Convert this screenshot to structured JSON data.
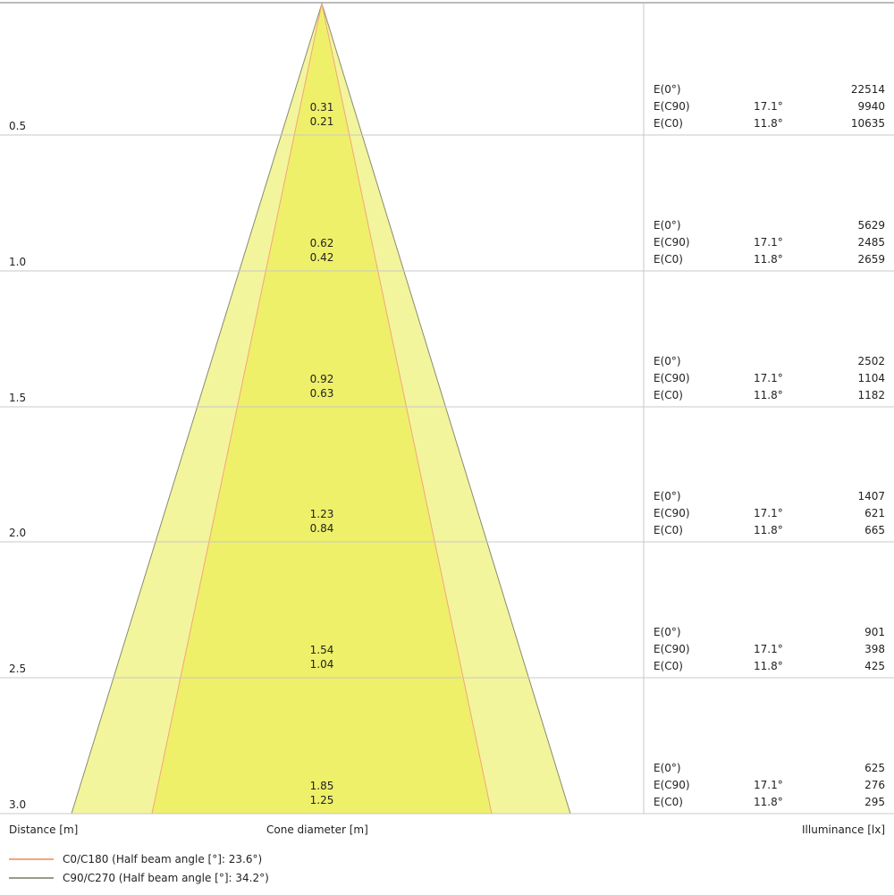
{
  "colors": {
    "outer_cone": "#f3f59c",
    "inner_cone": "#eef06a",
    "c0_line": "#f4a57a",
    "c90_line": "#9a9a8a",
    "grid": "#c8c8c8"
  },
  "rows": [
    {
      "distance": "0.5",
      "c90_diameter": "0.31",
      "c0_diameter": "0.21",
      "e0_label": "E(0°)",
      "e0": "22514",
      "ec90_label": "E(C90)",
      "ec90_angle": "17.1°",
      "ec90": "9940",
      "ec0_label": "E(C0)",
      "ec0_angle": "11.8°",
      "ec0": "10635"
    },
    {
      "distance": "1.0",
      "c90_diameter": "0.62",
      "c0_diameter": "0.42",
      "e0_label": "E(0°)",
      "e0": "5629",
      "ec90_label": "E(C90)",
      "ec90_angle": "17.1°",
      "ec90": "2485",
      "ec0_label": "E(C0)",
      "ec0_angle": "11.8°",
      "ec0": "2659"
    },
    {
      "distance": "1.5",
      "c90_diameter": "0.92",
      "c0_diameter": "0.63",
      "e0_label": "E(0°)",
      "e0": "2502",
      "ec90_label": "E(C90)",
      "ec90_angle": "17.1°",
      "ec90": "1104",
      "ec0_label": "E(C0)",
      "ec0_angle": "11.8°",
      "ec0": "1182"
    },
    {
      "distance": "2.0",
      "c90_diameter": "1.23",
      "c0_diameter": "0.84",
      "e0_label": "E(0°)",
      "e0": "1407",
      "ec90_label": "E(C90)",
      "ec90_angle": "17.1°",
      "ec90": "621",
      "ec0_label": "E(C0)",
      "ec0_angle": "11.8°",
      "ec0": "665"
    },
    {
      "distance": "2.5",
      "c90_diameter": "1.54",
      "c0_diameter": "1.04",
      "e0_label": "E(0°)",
      "e0": "901",
      "ec90_label": "E(C90)",
      "ec90_angle": "17.1°",
      "ec90": "398",
      "ec0_label": "E(C0)",
      "ec0_angle": "11.8°",
      "ec0": "425"
    },
    {
      "distance": "3.0",
      "c90_diameter": "1.85",
      "c0_diameter": "1.25",
      "e0_label": "E(0°)",
      "e0": "625",
      "ec90_label": "E(C90)",
      "ec90_angle": "17.1°",
      "ec90": "276",
      "ec0_label": "E(C0)",
      "ec0_angle": "11.8°",
      "ec0": "295"
    }
  ],
  "axis": {
    "distance_label": "Distance [m]",
    "cone_label": "Cone diameter [m]",
    "illuminance_label": "Illuminance [lx]"
  },
  "legend": [
    {
      "label": "C0/C180 (Half beam angle [°]: 23.6°)"
    },
    {
      "label": "C90/C270 (Half beam angle [°]: 34.2°)"
    }
  ]
}
